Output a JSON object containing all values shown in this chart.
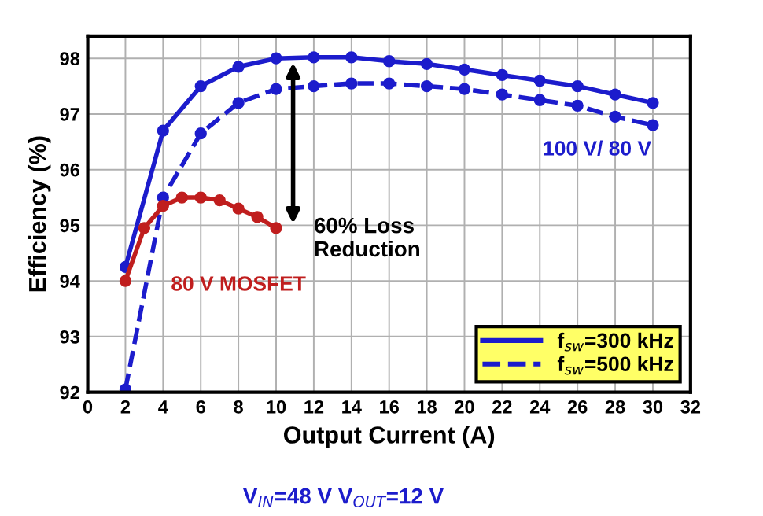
{
  "chart_data": {
    "type": "line",
    "xlabel": "Output Current (A)",
    "ylabel": "Efficiency (%)",
    "xlim": [
      0,
      32
    ],
    "xticks": [
      0,
      2,
      4,
      6,
      8,
      10,
      12,
      14,
      16,
      18,
      20,
      22,
      24,
      26,
      28,
      30,
      32
    ],
    "ylim": [
      92,
      98.4
    ],
    "yticks": [
      92,
      93,
      94,
      95,
      96,
      97,
      98
    ],
    "grid": true,
    "legend": "bottom right",
    "marker": "circle",
    "series": [
      {
        "name": "f$_{sw}$=300 kHz",
        "color": "#1c1ccc",
        "line_style": "solid",
        "x": [
          2,
          4,
          6,
          8,
          10,
          12,
          14,
          16,
          18,
          20,
          22,
          24,
          26,
          28,
          30
        ],
        "values": [
          94.25,
          96.7,
          97.5,
          97.85,
          98.0,
          98.02,
          98.02,
          97.95,
          97.9,
          97.8,
          97.7,
          97.6,
          97.5,
          97.35,
          97.2
        ]
      },
      {
        "name": "f$_{sw}$=500 kHz",
        "color": "#1c1ccc",
        "line_style": "dashed",
        "x": [
          2,
          4,
          6,
          8,
          10,
          12,
          14,
          16,
          18,
          20,
          22,
          24,
          26,
          28,
          30
        ],
        "values": [
          92.05,
          95.5,
          96.65,
          97.2,
          97.45,
          97.5,
          97.55,
          97.55,
          97.5,
          97.45,
          97.35,
          97.25,
          97.15,
          96.95,
          96.8
        ]
      },
      {
        "color": "#c01e1e",
        "line_style": "solid",
        "x": [
          2,
          3,
          4,
          5,
          6,
          7,
          8,
          9,
          10
        ],
        "values": [
          94.0,
          94.95,
          95.35,
          95.5,
          95.5,
          95.45,
          95.3,
          95.15,
          94.95
        ]
      }
    ],
    "annotations": [
      "60% Loss\nReduction",
      "80 V MOSFET",
      "100 V/ 80 V",
      "V$_{IN}$=48 V V$_{OUT}$=12 V"
    ]
  }
}
